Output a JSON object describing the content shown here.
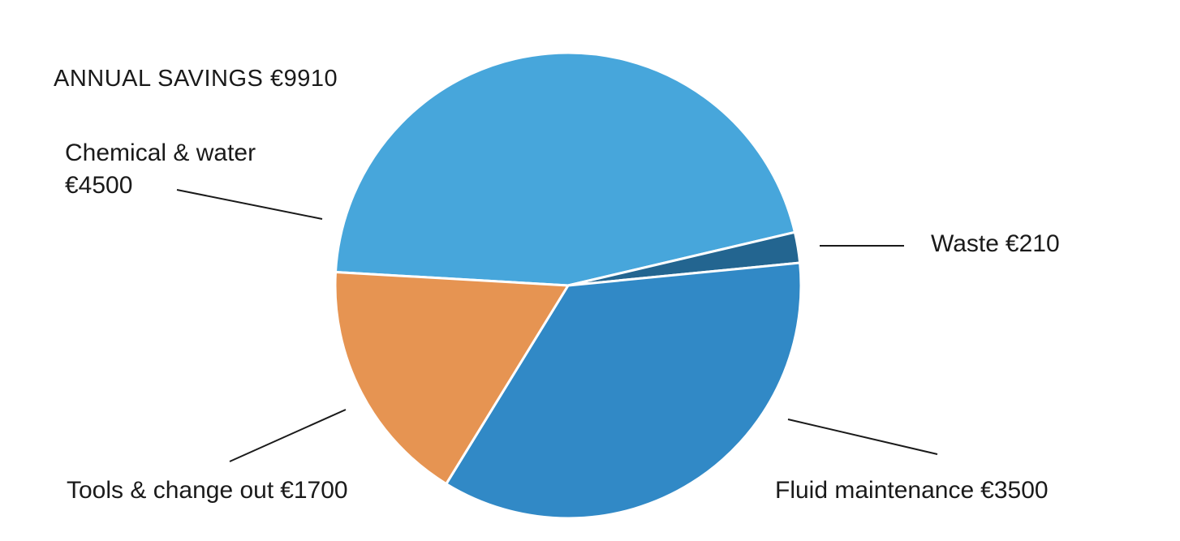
{
  "chart_data": {
    "type": "pie",
    "title": "ANNUAL SAVINGS €9910",
    "categories": [
      "Chemical & water",
      "Waste",
      "Fluid maintenance",
      "Tools & change out"
    ],
    "values": [
      4500,
      210,
      3500,
      1700
    ],
    "value_labels": [
      "€4500",
      "€210",
      "€3500",
      "€1700"
    ],
    "colors": [
      "#47a6db",
      "#236590",
      "#3189c6",
      "#e69452"
    ]
  }
}
